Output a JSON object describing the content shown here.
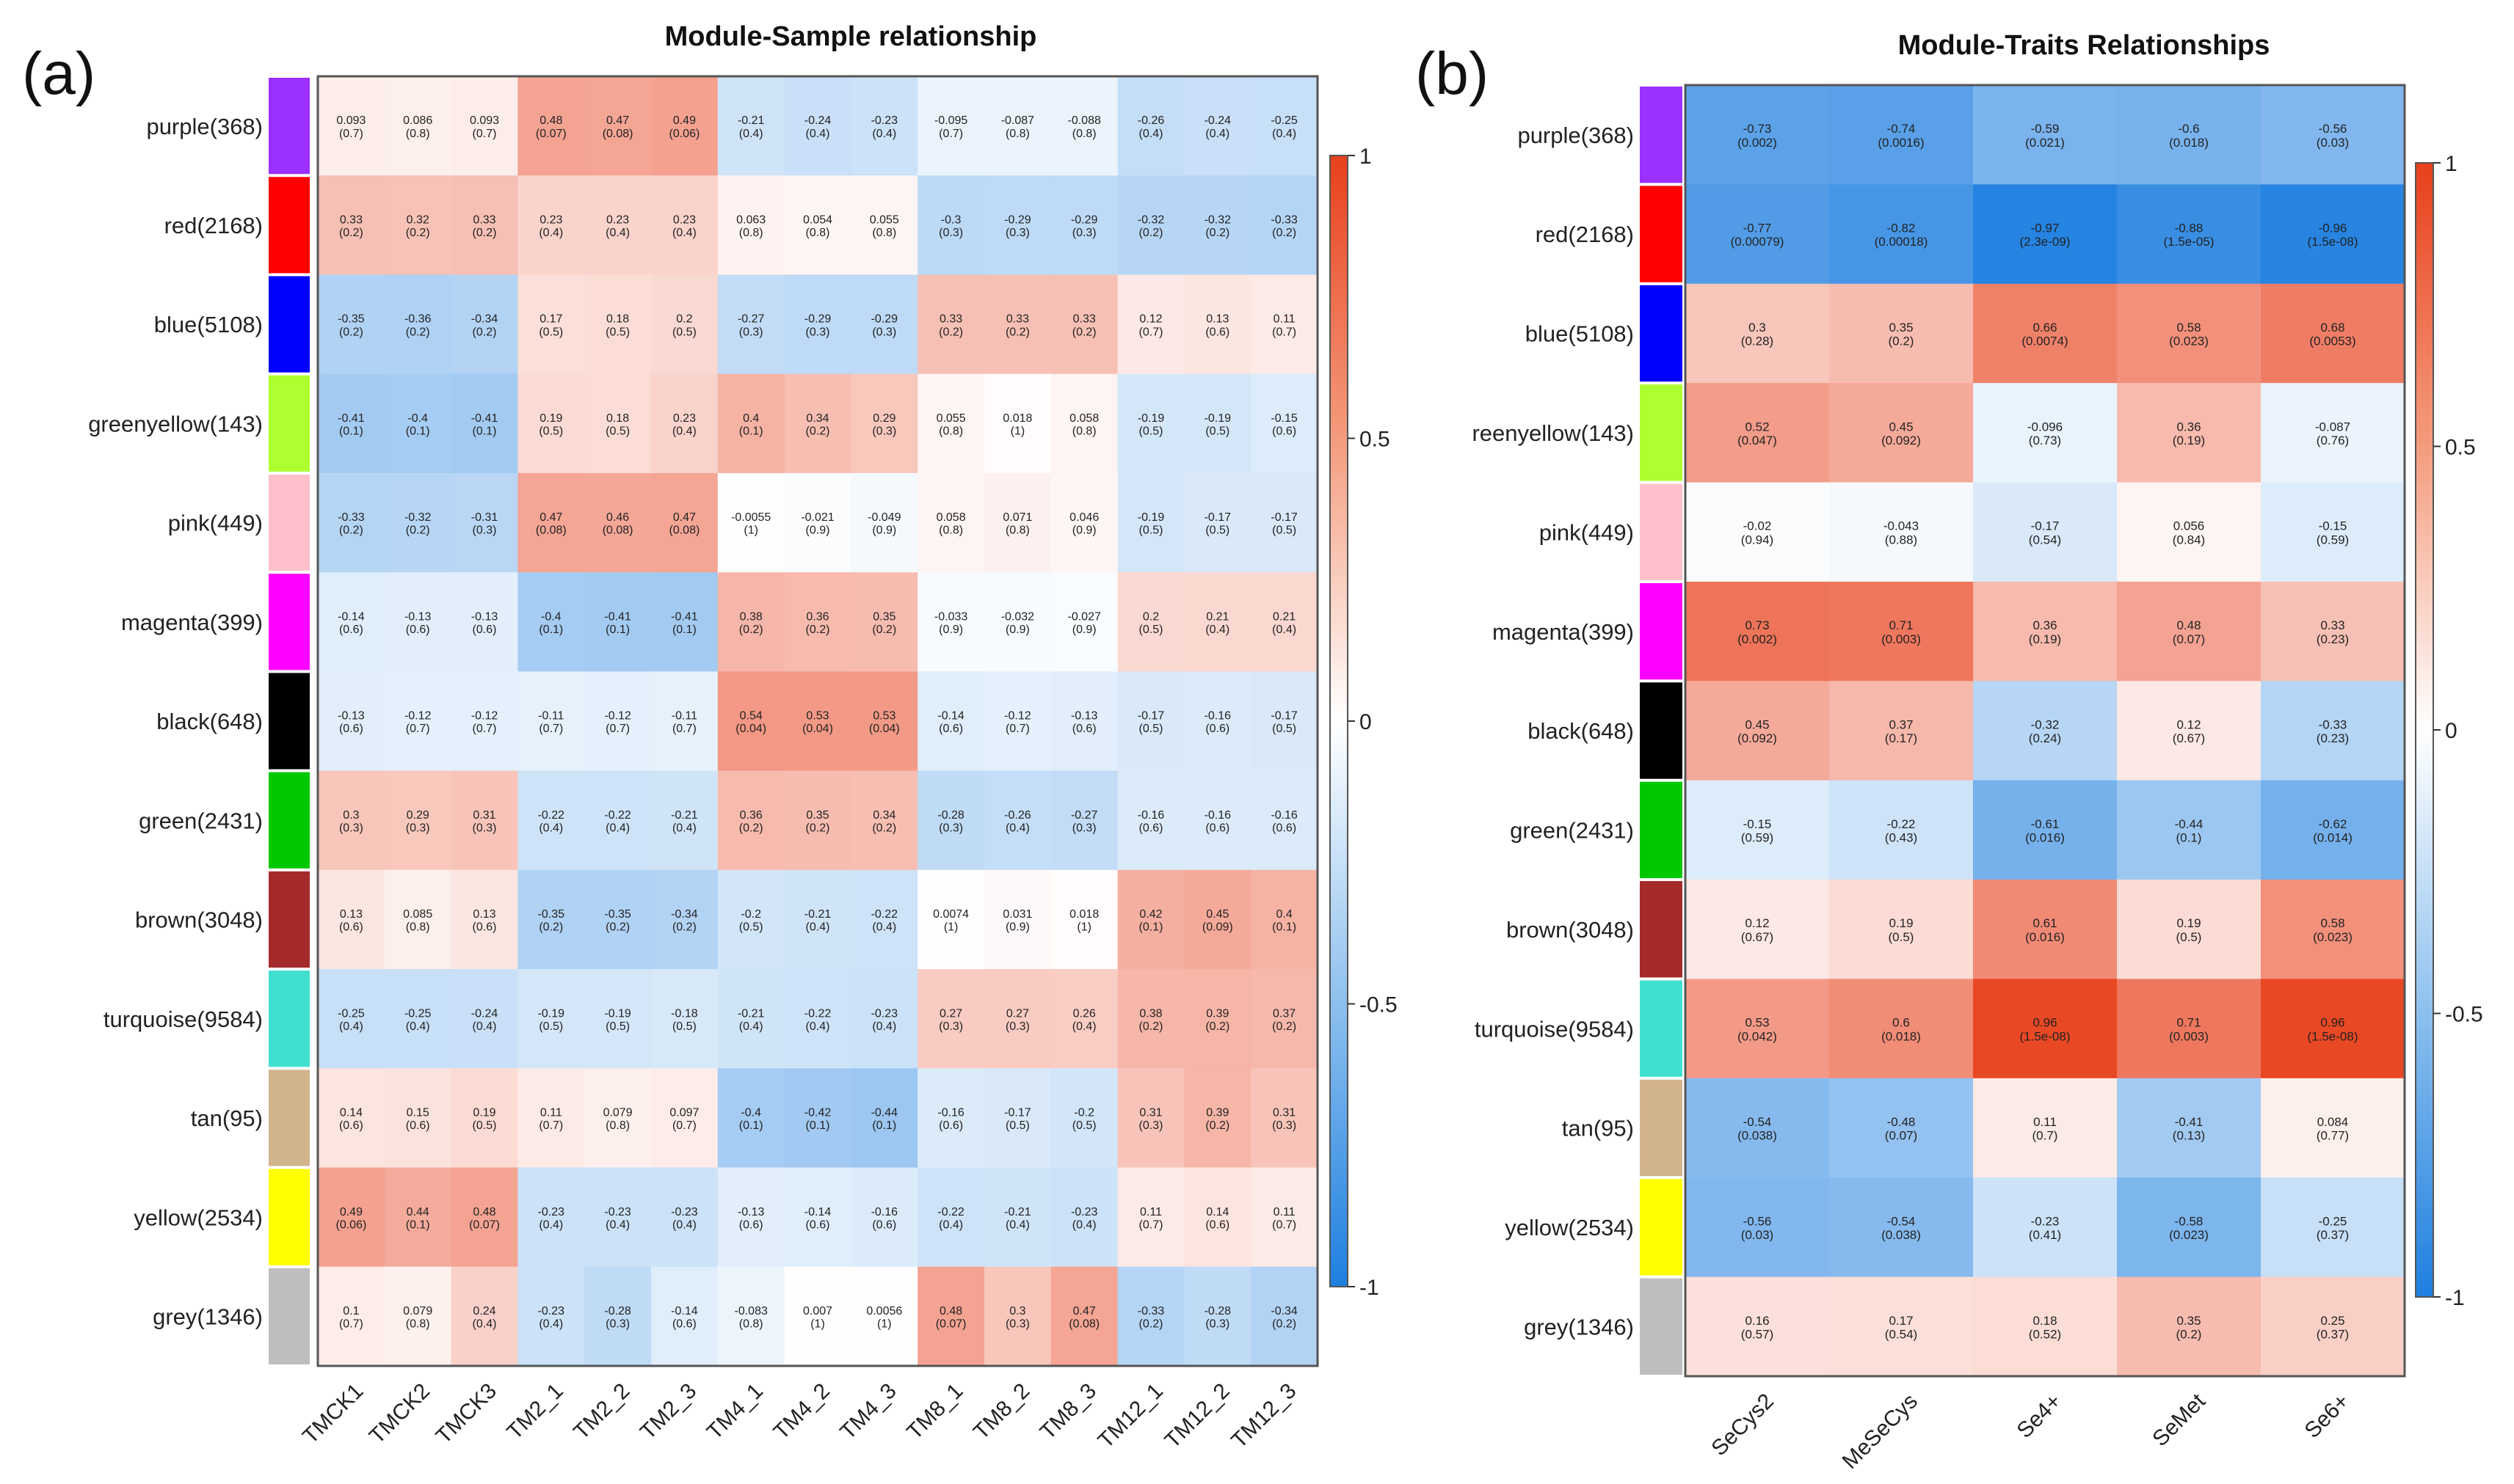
{
  "chart_data": [
    {
      "panel": "(a)",
      "type": "heatmap",
      "title": "Module-Sample relationship",
      "rows": [
        "purple(368)",
        "red(2168)",
        "blue(5108)",
        "greenyellow(143)",
        "pink(449)",
        "magenta(399)",
        "black(648)",
        "green(2431)",
        "brown(3048)",
        "turquoise(9584)",
        "tan(95)",
        "yellow(2534)",
        "grey(1346)"
      ],
      "row_colors": [
        "#9b30ff",
        "#ff0000",
        "#0000ff",
        "#adff2f",
        "#ffc0cb",
        "#ff00ff",
        "#000000",
        "#00c800",
        "#a52a2a",
        "#40e0d0",
        "#d2b48c",
        "#ffff00",
        "#bebebe"
      ],
      "columns": [
        "TMCK1",
        "TMCK2",
        "TMCK3",
        "TM2_1",
        "TM2_2",
        "TM2_3",
        "TM4_1",
        "TM4_2",
        "TM4_3",
        "TM8_1",
        "TM8_2",
        "TM8_3",
        "TM12_1",
        "TM12_2",
        "TM12_3"
      ],
      "values": [
        [
          0.093,
          0.086,
          0.093,
          0.48,
          0.47,
          0.49,
          -0.21,
          -0.24,
          -0.23,
          -0.095,
          -0.087,
          -0.088,
          -0.26,
          -0.24,
          -0.25
        ],
        [
          0.33,
          0.32,
          0.33,
          0.23,
          0.23,
          0.23,
          0.063,
          0.054,
          0.055,
          -0.3,
          -0.29,
          -0.29,
          -0.32,
          -0.32,
          -0.33
        ],
        [
          -0.35,
          -0.36,
          -0.34,
          0.17,
          0.18,
          0.2,
          -0.27,
          -0.29,
          -0.29,
          0.33,
          0.33,
          0.33,
          0.12,
          0.13,
          0.11
        ],
        [
          -0.41,
          -0.4,
          -0.41,
          0.19,
          0.18,
          0.23,
          0.4,
          0.34,
          0.29,
          0.055,
          0.018,
          0.058,
          -0.19,
          -0.19,
          -0.15
        ],
        [
          -0.33,
          -0.32,
          -0.31,
          0.47,
          0.46,
          0.47,
          -0.0055,
          -0.021,
          -0.049,
          0.058,
          0.071,
          0.046,
          -0.19,
          -0.17,
          -0.17
        ],
        [
          -0.14,
          -0.13,
          -0.13,
          -0.4,
          -0.41,
          -0.41,
          0.38,
          0.36,
          0.35,
          -0.033,
          -0.032,
          -0.027,
          0.2,
          0.21,
          0.21
        ],
        [
          -0.13,
          -0.12,
          -0.12,
          -0.11,
          -0.12,
          -0.11,
          0.54,
          0.53,
          0.53,
          -0.14,
          -0.12,
          -0.13,
          -0.17,
          -0.16,
          -0.17
        ],
        [
          0.3,
          0.29,
          0.31,
          -0.22,
          -0.22,
          -0.21,
          0.36,
          0.35,
          0.34,
          -0.28,
          -0.26,
          -0.27,
          -0.16,
          -0.16,
          -0.16
        ],
        [
          0.13,
          0.085,
          0.13,
          -0.35,
          -0.35,
          -0.34,
          -0.2,
          -0.21,
          -0.22,
          0.0074,
          0.031,
          0.018,
          0.42,
          0.45,
          0.4
        ],
        [
          -0.25,
          -0.25,
          -0.24,
          -0.19,
          -0.19,
          -0.18,
          -0.21,
          -0.22,
          -0.23,
          0.27,
          0.27,
          0.26,
          0.38,
          0.39,
          0.37
        ],
        [
          0.14,
          0.15,
          0.19,
          0.11,
          0.079,
          0.097,
          -0.4,
          -0.42,
          -0.44,
          -0.16,
          -0.17,
          -0.2,
          0.31,
          0.39,
          0.31
        ],
        [
          0.49,
          0.44,
          0.48,
          -0.23,
          -0.23,
          -0.23,
          -0.13,
          -0.14,
          -0.16,
          -0.22,
          -0.21,
          -0.23,
          0.11,
          0.14,
          0.11
        ],
        [
          0.1,
          0.079,
          0.24,
          -0.23,
          -0.28,
          -0.14,
          -0.083,
          0.007,
          0.0056,
          0.48,
          0.3,
          0.47,
          -0.33,
          -0.28,
          -0.34
        ]
      ],
      "pvalues": [
        [
          "(0.7)",
          "(0.8)",
          "(0.7)",
          "(0.07)",
          "(0.08)",
          "(0.06)",
          "(0.4)",
          "(0.4)",
          "(0.4)",
          "(0.7)",
          "(0.8)",
          "(0.8)",
          "(0.4)",
          "(0.4)",
          "(0.4)"
        ],
        [
          "(0.2)",
          "(0.2)",
          "(0.2)",
          "(0.4)",
          "(0.4)",
          "(0.4)",
          "(0.8)",
          "(0.8)",
          "(0.8)",
          "(0.3)",
          "(0.3)",
          "(0.3)",
          "(0.2)",
          "(0.2)",
          "(0.2)"
        ],
        [
          "(0.2)",
          "(0.2)",
          "(0.2)",
          "(0.5)",
          "(0.5)",
          "(0.5)",
          "(0.3)",
          "(0.3)",
          "(0.3)",
          "(0.2)",
          "(0.2)",
          "(0.2)",
          "(0.7)",
          "(0.6)",
          "(0.7)"
        ],
        [
          "(0.1)",
          "(0.1)",
          "(0.1)",
          "(0.5)",
          "(0.5)",
          "(0.4)",
          "(0.1)",
          "(0.2)",
          "(0.3)",
          "(0.8)",
          "(1)",
          "(0.8)",
          "(0.5)",
          "(0.5)",
          "(0.6)"
        ],
        [
          "(0.2)",
          "(0.2)",
          "(0.3)",
          "(0.08)",
          "(0.08)",
          "(0.08)",
          "(1)",
          "(0.9)",
          "(0.9)",
          "(0.8)",
          "(0.8)",
          "(0.9)",
          "(0.5)",
          "(0.5)",
          "(0.5)"
        ],
        [
          "(0.6)",
          "(0.6)",
          "(0.6)",
          "(0.1)",
          "(0.1)",
          "(0.1)",
          "(0.2)",
          "(0.2)",
          "(0.2)",
          "(0.9)",
          "(0.9)",
          "(0.9)",
          "(0.5)",
          "(0.4)",
          "(0.4)"
        ],
        [
          "(0.6)",
          "(0.7)",
          "(0.7)",
          "(0.7)",
          "(0.7)",
          "(0.7)",
          "(0.04)",
          "(0.04)",
          "(0.04)",
          "(0.6)",
          "(0.7)",
          "(0.6)",
          "(0.5)",
          "(0.6)",
          "(0.5)"
        ],
        [
          "(0.3)",
          "(0.3)",
          "(0.3)",
          "(0.4)",
          "(0.4)",
          "(0.4)",
          "(0.2)",
          "(0.2)",
          "(0.2)",
          "(0.3)",
          "(0.4)",
          "(0.3)",
          "(0.6)",
          "(0.6)",
          "(0.6)"
        ],
        [
          "(0.6)",
          "(0.8)",
          "(0.6)",
          "(0.2)",
          "(0.2)",
          "(0.2)",
          "(0.5)",
          "(0.4)",
          "(0.4)",
          "(1)",
          "(0.9)",
          "(1)",
          "(0.1)",
          "(0.09)",
          "(0.1)"
        ],
        [
          "(0.4)",
          "(0.4)",
          "(0.4)",
          "(0.5)",
          "(0.5)",
          "(0.5)",
          "(0.4)",
          "(0.4)",
          "(0.4)",
          "(0.3)",
          "(0.3)",
          "(0.4)",
          "(0.2)",
          "(0.2)",
          "(0.2)"
        ],
        [
          "(0.6)",
          "(0.6)",
          "(0.5)",
          "(0.7)",
          "(0.8)",
          "(0.7)",
          "(0.1)",
          "(0.1)",
          "(0.1)",
          "(0.6)",
          "(0.5)",
          "(0.5)",
          "(0.3)",
          "(0.2)",
          "(0.3)"
        ],
        [
          "(0.06)",
          "(0.1)",
          "(0.07)",
          "(0.4)",
          "(0.4)",
          "(0.4)",
          "(0.6)",
          "(0.6)",
          "(0.6)",
          "(0.4)",
          "(0.4)",
          "(0.4)",
          "(0.7)",
          "(0.6)",
          "(0.7)"
        ],
        [
          "(0.7)",
          "(0.8)",
          "(0.4)",
          "(0.4)",
          "(0.3)",
          "(0.6)",
          "(0.8)",
          "(1)",
          "(1)",
          "(0.07)",
          "(0.3)",
          "(0.08)",
          "(0.2)",
          "(0.3)",
          "(0.2)"
        ]
      ],
      "colorbar": {
        "range": [
          -1,
          1
        ],
        "ticks": [
          "1",
          "0.5",
          "0",
          "-0.5",
          "-1"
        ]
      }
    },
    {
      "panel": "(b)",
      "type": "heatmap",
      "title": "Module-Traits Relationships",
      "rows": [
        "purple(368)",
        "red(2168)",
        "blue(5108)",
        "reenyellow(143)",
        "pink(449)",
        "magenta(399)",
        "black(648)",
        "green(2431)",
        "brown(3048)",
        "turquoise(9584)",
        "tan(95)",
        "yellow(2534)",
        "grey(1346)"
      ],
      "row_colors": [
        "#9b30ff",
        "#ff0000",
        "#0000ff",
        "#adff2f",
        "#ffc0cb",
        "#ff00ff",
        "#000000",
        "#00c800",
        "#a52a2a",
        "#40e0d0",
        "#d2b48c",
        "#ffff00",
        "#bebebe"
      ],
      "columns": [
        "SeCys2",
        "MeSeCys",
        "Se4+",
        "SeMet",
        "Se6+"
      ],
      "values": [
        [
          -0.73,
          -0.74,
          -0.59,
          -0.6,
          -0.56
        ],
        [
          -0.77,
          -0.82,
          -0.97,
          -0.88,
          -0.96
        ],
        [
          0.3,
          0.35,
          0.66,
          0.58,
          0.68
        ],
        [
          0.52,
          0.45,
          -0.096,
          0.36,
          -0.087
        ],
        [
          -0.02,
          -0.043,
          -0.17,
          0.056,
          -0.15
        ],
        [
          0.73,
          0.71,
          0.36,
          0.48,
          0.33
        ],
        [
          0.45,
          0.37,
          -0.32,
          0.12,
          -0.33
        ],
        [
          -0.15,
          -0.22,
          -0.61,
          -0.44,
          -0.62
        ],
        [
          0.12,
          0.19,
          0.61,
          0.19,
          0.58
        ],
        [
          0.53,
          0.6,
          0.96,
          0.71,
          0.96
        ],
        [
          -0.54,
          -0.48,
          0.11,
          -0.41,
          0.084
        ],
        [
          -0.56,
          -0.54,
          -0.23,
          -0.58,
          -0.25
        ],
        [
          0.16,
          0.17,
          0.18,
          0.35,
          0.25
        ]
      ],
      "pvalues": [
        [
          "(0.002)",
          "(0.0016)",
          "(0.021)",
          "(0.018)",
          "(0.03)"
        ],
        [
          "(0.00079)",
          "(0.00018)",
          "(2.3e-09)",
          "(1.5e-05)",
          "(1.5e-08)"
        ],
        [
          "(0.28)",
          "(0.2)",
          "(0.0074)",
          "(0.023)",
          "(0.0053)"
        ],
        [
          "(0.047)",
          "(0.092)",
          "(0.73)",
          "(0.19)",
          "(0.76)"
        ],
        [
          "(0.94)",
          "(0.88)",
          "(0.54)",
          "(0.84)",
          "(0.59)"
        ],
        [
          "(0.002)",
          "(0.003)",
          "(0.19)",
          "(0.07)",
          "(0.23)"
        ],
        [
          "(0.092)",
          "(0.17)",
          "(0.24)",
          "(0.67)",
          "(0.23)"
        ],
        [
          "(0.59)",
          "(0.43)",
          "(0.016)",
          "(0.1)",
          "(0.014)"
        ],
        [
          "(0.67)",
          "(0.5)",
          "(0.016)",
          "(0.5)",
          "(0.023)"
        ],
        [
          "(0.042)",
          "(0.018)",
          "(1.5e-08)",
          "(0.003)",
          "(1.5e-08)"
        ],
        [
          "(0.038)",
          "(0.07)",
          "(0.7)",
          "(0.13)",
          "(0.77)"
        ],
        [
          "(0.03)",
          "(0.038)",
          "(0.41)",
          "(0.023)",
          "(0.37)"
        ],
        [
          "(0.57)",
          "(0.54)",
          "(0.52)",
          "(0.2)",
          "(0.37)"
        ]
      ],
      "colorbar": {
        "range": [
          -1,
          1
        ],
        "ticks": [
          "1",
          "0.5",
          "0",
          "-0.5",
          "-1"
        ]
      }
    }
  ]
}
